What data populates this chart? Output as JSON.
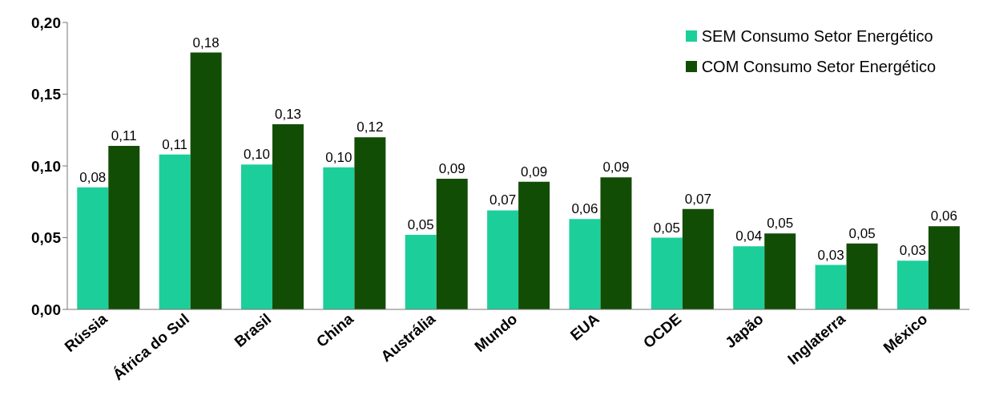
{
  "chart_data": {
    "type": "bar",
    "categories": [
      "Rússia",
      "África do Sul",
      "Brasil",
      "China",
      "Austrália",
      "Mundo",
      "EUA",
      "OCDE",
      "Japão",
      "Inglaterra",
      "México"
    ],
    "series": [
      {
        "name": "SEM Consumo Setor Energético",
        "color": "#1ccf9a",
        "values": [
          0.085,
          0.108,
          0.101,
          0.099,
          0.052,
          0.069,
          0.063,
          0.05,
          0.044,
          0.031,
          0.034
        ],
        "value_labels": [
          "0,08",
          "0,11",
          "0,10",
          "0,10",
          "0,05",
          "0,07",
          "0,06",
          "0,05",
          "0,04",
          "0,03",
          "0,03"
        ]
      },
      {
        "name": "COM Consumo Setor Energético",
        "color": "#124d05",
        "values": [
          0.114,
          0.179,
          0.129,
          0.12,
          0.091,
          0.089,
          0.092,
          0.07,
          0.053,
          0.046,
          0.058
        ],
        "value_labels": [
          "0,11",
          "0,18",
          "0,13",
          "0,12",
          "0,09",
          "0,09",
          "0,09",
          "0,07",
          "0,05",
          "0,05",
          "0,06"
        ]
      }
    ],
    "ylim": [
      0,
      0.2
    ],
    "yticks": [
      {
        "value": 0,
        "label": "0,00"
      },
      {
        "value": 0.05,
        "label": "0,05"
      },
      {
        "value": 0.1,
        "label": "0,10"
      },
      {
        "value": 0.15,
        "label": "0,15"
      },
      {
        "value": 0.2,
        "label": "0,20"
      }
    ],
    "grid": false,
    "legend": "top right"
  }
}
